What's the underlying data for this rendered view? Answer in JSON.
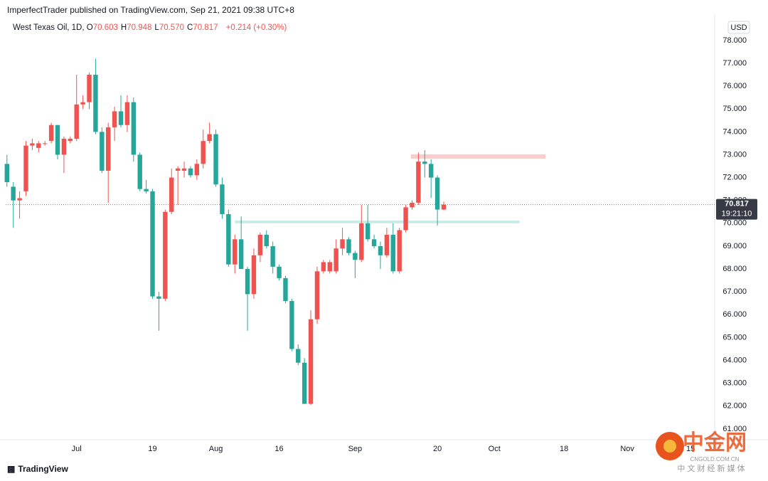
{
  "header": "ImperfectTrader published on TradingView.com, Sep 21, 2021 09:38 UTC+8",
  "legend": {
    "symbol": "West Texas Oil, 1D,",
    "items": [
      {
        "label": "O",
        "text": "70.603"
      },
      {
        "label": "H",
        "text": "70.948"
      },
      {
        "label": "L",
        "text": "70.570"
      },
      {
        "label": "C",
        "text": "70.817"
      }
    ],
    "change": "+0.214 (+0.30%)"
  },
  "brand": "TradingView",
  "watermark": {
    "name": "中金网",
    "site": "CNGOLD.COM.CN",
    "tagline": "中 文 财 经 新 媒 体"
  },
  "chart_data": {
    "type": "candlestick",
    "currency": "USD",
    "up_color": "#ef5350",
    "down_color": "#26a69a",
    "open": [
      72.6,
      71.6,
      71.0,
      71.4,
      73.4,
      73.3,
      73.5,
      73.6,
      74.3,
      73.0,
      73.6,
      73.7,
      75.2,
      75.3,
      76.5,
      74.0,
      72.3,
      74.2,
      74.9,
      74.3,
      75.3,
      73.0,
      71.5,
      71.4,
      66.8,
      66.7,
      70.5,
      72.3,
      72.3,
      72.4,
      72.1,
      72.6,
      73.6,
      73.9,
      71.7,
      70.4,
      68.2,
      69.3,
      68.0,
      66.9,
      68.6,
      69.5,
      69.0,
      68.1,
      67.6,
      66.6,
      64.5,
      63.9,
      62.1,
      65.8,
      67.9,
      67.9,
      67.9,
      68.9,
      69.3,
      68.7,
      68.4,
      70.0,
      69.3,
      69.0,
      68.6,
      69.5,
      67.9,
      69.7,
      70.7,
      70.9,
      72.7,
      72.6,
      72.0,
      70.603
    ],
    "high": [
      73.0,
      71.8,
      71.4,
      73.6,
      73.7,
      73.6,
      73.6,
      74.4,
      74.3,
      73.8,
      73.8,
      76.5,
      75.6,
      76.6,
      77.2,
      74.2,
      74.4,
      75.1,
      75.6,
      75.6,
      75.5,
      73.1,
      71.9,
      71.5,
      67.0,
      70.6,
      72.4,
      72.5,
      72.7,
      72.5,
      72.8,
      74.1,
      74.4,
      74.1,
      72.0,
      70.6,
      69.5,
      70.3,
      68.1,
      68.9,
      69.6,
      69.7,
      69.2,
      68.2,
      67.7,
      66.7,
      64.7,
      64.1,
      66.2,
      68.1,
      68.4,
      68.4,
      69.3,
      69.8,
      69.4,
      68.8,
      70.8,
      70.8,
      69.5,
      69.2,
      69.8,
      70.0,
      69.8,
      70.8,
      71.0,
      73.1,
      73.2,
      72.8,
      72.1,
      70.948
    ],
    "low": [
      71.6,
      69.8,
      70.2,
      71.2,
      73.2,
      73.1,
      73.4,
      73.5,
      72.8,
      72.2,
      73.5,
      73.6,
      75.0,
      75.0,
      73.9,
      72.2,
      70.9,
      73.6,
      74.2,
      74.0,
      72.7,
      71.4,
      71.3,
      66.7,
      65.3,
      66.6,
      70.4,
      70.8,
      72.0,
      72.0,
      71.9,
      72.4,
      73.5,
      71.6,
      70.2,
      68.1,
      67.8,
      68.0,
      65.3,
      66.7,
      68.3,
      68.9,
      67.8,
      67.5,
      66.5,
      64.4,
      63.8,
      62.1,
      62.05,
      65.6,
      67.8,
      67.8,
      67.8,
      68.6,
      68.6,
      67.6,
      68.3,
      69.2,
      68.9,
      68.0,
      68.5,
      67.8,
      67.8,
      69.6,
      70.6,
      70.8,
      72.0,
      71.1,
      69.9,
      70.57
    ],
    "close": [
      71.8,
      71.0,
      71.1,
      73.4,
      73.5,
      73.5,
      73.5,
      74.3,
      73.0,
      73.7,
      73.7,
      75.2,
      75.3,
      76.5,
      74.0,
      72.3,
      74.2,
      74.9,
      74.3,
      75.3,
      73.0,
      71.5,
      71.4,
      66.8,
      66.7,
      70.5,
      72.0,
      72.4,
      72.4,
      72.1,
      72.6,
      73.6,
      73.9,
      71.7,
      70.4,
      68.2,
      69.3,
      68.0,
      66.9,
      68.6,
      69.5,
      69.0,
      68.1,
      67.6,
      66.6,
      64.5,
      63.9,
      62.1,
      65.8,
      67.9,
      68.3,
      68.3,
      68.9,
      69.3,
      68.7,
      68.4,
      70.0,
      69.3,
      69.0,
      68.6,
      69.5,
      67.9,
      69.7,
      70.7,
      70.9,
      72.7,
      72.6,
      72.0,
      70.6,
      70.817
    ],
    "xlim": [
      -0.2,
      111.8
    ],
    "xticks": [
      {
        "value": 11,
        "label": "Jul"
      },
      {
        "value": 23,
        "label": "19"
      },
      {
        "value": 33,
        "label": "Aug"
      },
      {
        "value": 43,
        "label": "16"
      },
      {
        "value": 55,
        "label": "Sep"
      },
      {
        "value": 68,
        "label": "20"
      },
      {
        "value": 77,
        "label": "Oct"
      },
      {
        "value": 88,
        "label": "18"
      },
      {
        "value": 98,
        "label": "Nov"
      },
      {
        "value": 108,
        "label": "15"
      }
    ],
    "ylim": [
      60.53,
      78.93
    ],
    "yticks": [
      {
        "value": 61,
        "label": "61.000"
      },
      {
        "value": 62,
        "label": "62.000"
      },
      {
        "value": 63,
        "label": "63.000"
      },
      {
        "value": 64,
        "label": "64.000"
      },
      {
        "value": 65,
        "label": "65.000"
      },
      {
        "value": 66,
        "label": "66.000"
      },
      {
        "value": 67,
        "label": "67.000"
      },
      {
        "value": 68,
        "label": "68.000"
      },
      {
        "value": 69,
        "label": "69.000"
      },
      {
        "value": 70,
        "label": "70.000"
      },
      {
        "value": 71,
        "label": "71.000"
      },
      {
        "value": 72,
        "label": "72.000"
      },
      {
        "value": 73,
        "label": "73.000"
      },
      {
        "value": 74,
        "label": "74.000"
      },
      {
        "value": 75,
        "label": "75.000"
      },
      {
        "value": 76,
        "label": "76.000"
      },
      {
        "value": 77,
        "label": "77.000"
      },
      {
        "value": 78,
        "label": "78.000"
      }
    ],
    "grid": false,
    "last_price": {
      "value": 70.817,
      "label": "70.817",
      "countdown": "19:21:10"
    },
    "zones": [
      {
        "start": 63.8,
        "end": 85.1,
        "top": 73.02,
        "bottom": 72.83,
        "color": "#f8cdcc"
      },
      {
        "start": 36.0,
        "end": 81.0,
        "top": 70.12,
        "bottom": 70.0,
        "color": "#c9ebe8"
      }
    ]
  }
}
